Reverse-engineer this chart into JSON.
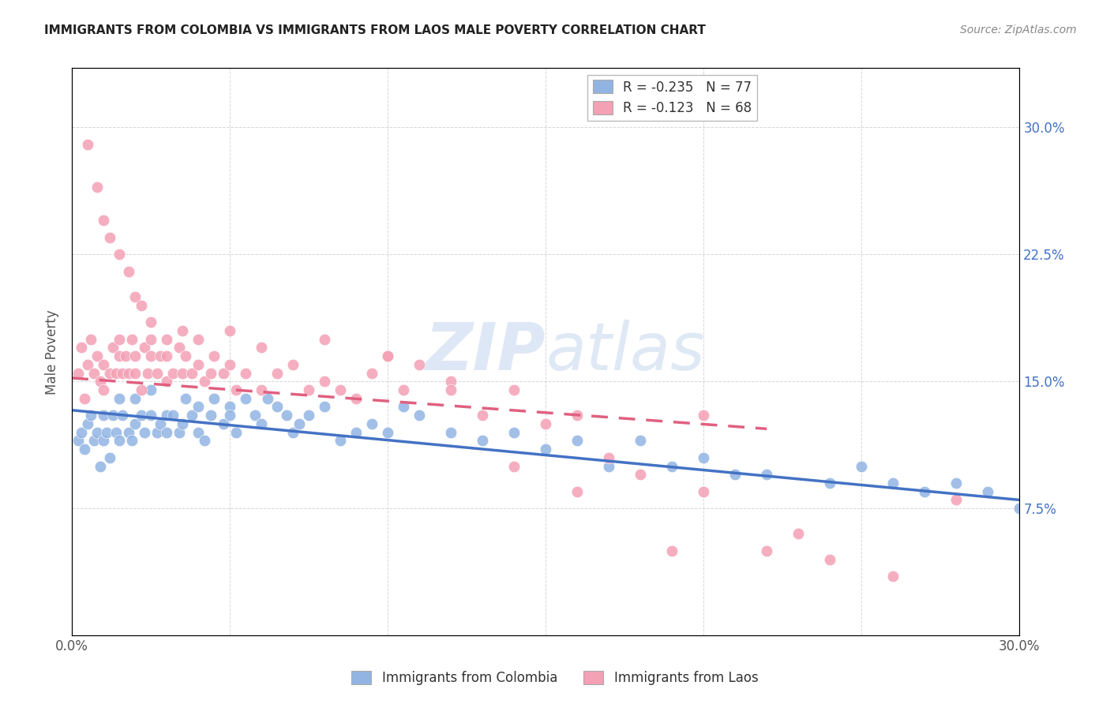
{
  "title": "IMMIGRANTS FROM COLOMBIA VS IMMIGRANTS FROM LAOS MALE POVERTY CORRELATION CHART",
  "source": "Source: ZipAtlas.com",
  "ylabel": "Male Poverty",
  "yticks_labels": [
    "7.5%",
    "15.0%",
    "22.5%",
    "30.0%"
  ],
  "ytick_vals": [
    0.075,
    0.15,
    0.225,
    0.3
  ],
  "xlim": [
    0.0,
    0.3
  ],
  "ylim": [
    0.0,
    0.335
  ],
  "legend_colombia": "R = -0.235   N = 77",
  "legend_laos": "R = -0.123   N = 68",
  "legend_label_colombia": "Immigrants from Colombia",
  "legend_label_laos": "Immigrants from Laos",
  "color_colombia": "#92B4E3",
  "color_laos": "#F4A0B5",
  "trendline_colombia": "#4472C4",
  "trendline_laos": "#E06080",
  "background_color": "#FFFFFF",
  "grid_color": "#CCCCCC",
  "colombia_x": [
    0.002,
    0.003,
    0.004,
    0.005,
    0.006,
    0.007,
    0.008,
    0.009,
    0.01,
    0.01,
    0.011,
    0.012,
    0.013,
    0.014,
    0.015,
    0.015,
    0.016,
    0.018,
    0.019,
    0.02,
    0.02,
    0.022,
    0.023,
    0.025,
    0.025,
    0.027,
    0.028,
    0.03,
    0.03,
    0.032,
    0.034,
    0.035,
    0.036,
    0.038,
    0.04,
    0.04,
    0.042,
    0.044,
    0.045,
    0.048,
    0.05,
    0.05,
    0.052,
    0.055,
    0.058,
    0.06,
    0.062,
    0.065,
    0.068,
    0.07,
    0.072,
    0.075,
    0.08,
    0.085,
    0.09,
    0.095,
    0.1,
    0.105,
    0.11,
    0.12,
    0.13,
    0.14,
    0.15,
    0.16,
    0.17,
    0.18,
    0.19,
    0.2,
    0.21,
    0.22,
    0.24,
    0.25,
    0.26,
    0.27,
    0.28,
    0.29,
    0.3
  ],
  "colombia_y": [
    0.115,
    0.12,
    0.11,
    0.125,
    0.13,
    0.115,
    0.12,
    0.1,
    0.115,
    0.13,
    0.12,
    0.105,
    0.13,
    0.12,
    0.115,
    0.14,
    0.13,
    0.12,
    0.115,
    0.125,
    0.14,
    0.13,
    0.12,
    0.13,
    0.145,
    0.12,
    0.125,
    0.13,
    0.12,
    0.13,
    0.12,
    0.125,
    0.14,
    0.13,
    0.135,
    0.12,
    0.115,
    0.13,
    0.14,
    0.125,
    0.135,
    0.13,
    0.12,
    0.14,
    0.13,
    0.125,
    0.14,
    0.135,
    0.13,
    0.12,
    0.125,
    0.13,
    0.135,
    0.115,
    0.12,
    0.125,
    0.12,
    0.135,
    0.13,
    0.12,
    0.115,
    0.12,
    0.11,
    0.115,
    0.1,
    0.115,
    0.1,
    0.105,
    0.095,
    0.095,
    0.09,
    0.1,
    0.09,
    0.085,
    0.09,
    0.085,
    0.075
  ],
  "laos_x": [
    0.002,
    0.003,
    0.004,
    0.005,
    0.006,
    0.007,
    0.008,
    0.009,
    0.01,
    0.01,
    0.012,
    0.013,
    0.014,
    0.015,
    0.015,
    0.016,
    0.017,
    0.018,
    0.019,
    0.02,
    0.02,
    0.022,
    0.023,
    0.024,
    0.025,
    0.025,
    0.027,
    0.028,
    0.03,
    0.03,
    0.032,
    0.034,
    0.035,
    0.036,
    0.038,
    0.04,
    0.042,
    0.044,
    0.045,
    0.048,
    0.05,
    0.052,
    0.055,
    0.06,
    0.065,
    0.07,
    0.075,
    0.08,
    0.085,
    0.09,
    0.095,
    0.1,
    0.105,
    0.11,
    0.12,
    0.13,
    0.14,
    0.15,
    0.16,
    0.17,
    0.18,
    0.19,
    0.2,
    0.22,
    0.23,
    0.24,
    0.26,
    0.28
  ],
  "laos_y": [
    0.155,
    0.17,
    0.14,
    0.16,
    0.175,
    0.155,
    0.165,
    0.15,
    0.145,
    0.16,
    0.155,
    0.17,
    0.155,
    0.165,
    0.175,
    0.155,
    0.165,
    0.155,
    0.175,
    0.155,
    0.165,
    0.145,
    0.17,
    0.155,
    0.165,
    0.175,
    0.155,
    0.165,
    0.15,
    0.165,
    0.155,
    0.17,
    0.155,
    0.165,
    0.155,
    0.16,
    0.15,
    0.155,
    0.165,
    0.155,
    0.16,
    0.145,
    0.155,
    0.145,
    0.155,
    0.16,
    0.145,
    0.15,
    0.145,
    0.14,
    0.155,
    0.165,
    0.145,
    0.16,
    0.15,
    0.13,
    0.145,
    0.125,
    0.13,
    0.105,
    0.095,
    0.05,
    0.085,
    0.05,
    0.06,
    0.045,
    0.035,
    0.08
  ],
  "laos_outlier_x": [
    0.005,
    0.008,
    0.01,
    0.012,
    0.015,
    0.018,
    0.02,
    0.022,
    0.025,
    0.03,
    0.035,
    0.04,
    0.05,
    0.06,
    0.08,
    0.1,
    0.12,
    0.14,
    0.16,
    0.2
  ],
  "laos_outlier_y": [
    0.29,
    0.265,
    0.245,
    0.235,
    0.225,
    0.215,
    0.2,
    0.195,
    0.185,
    0.175,
    0.18,
    0.175,
    0.18,
    0.17,
    0.175,
    0.165,
    0.145,
    0.1,
    0.085,
    0.13
  ]
}
